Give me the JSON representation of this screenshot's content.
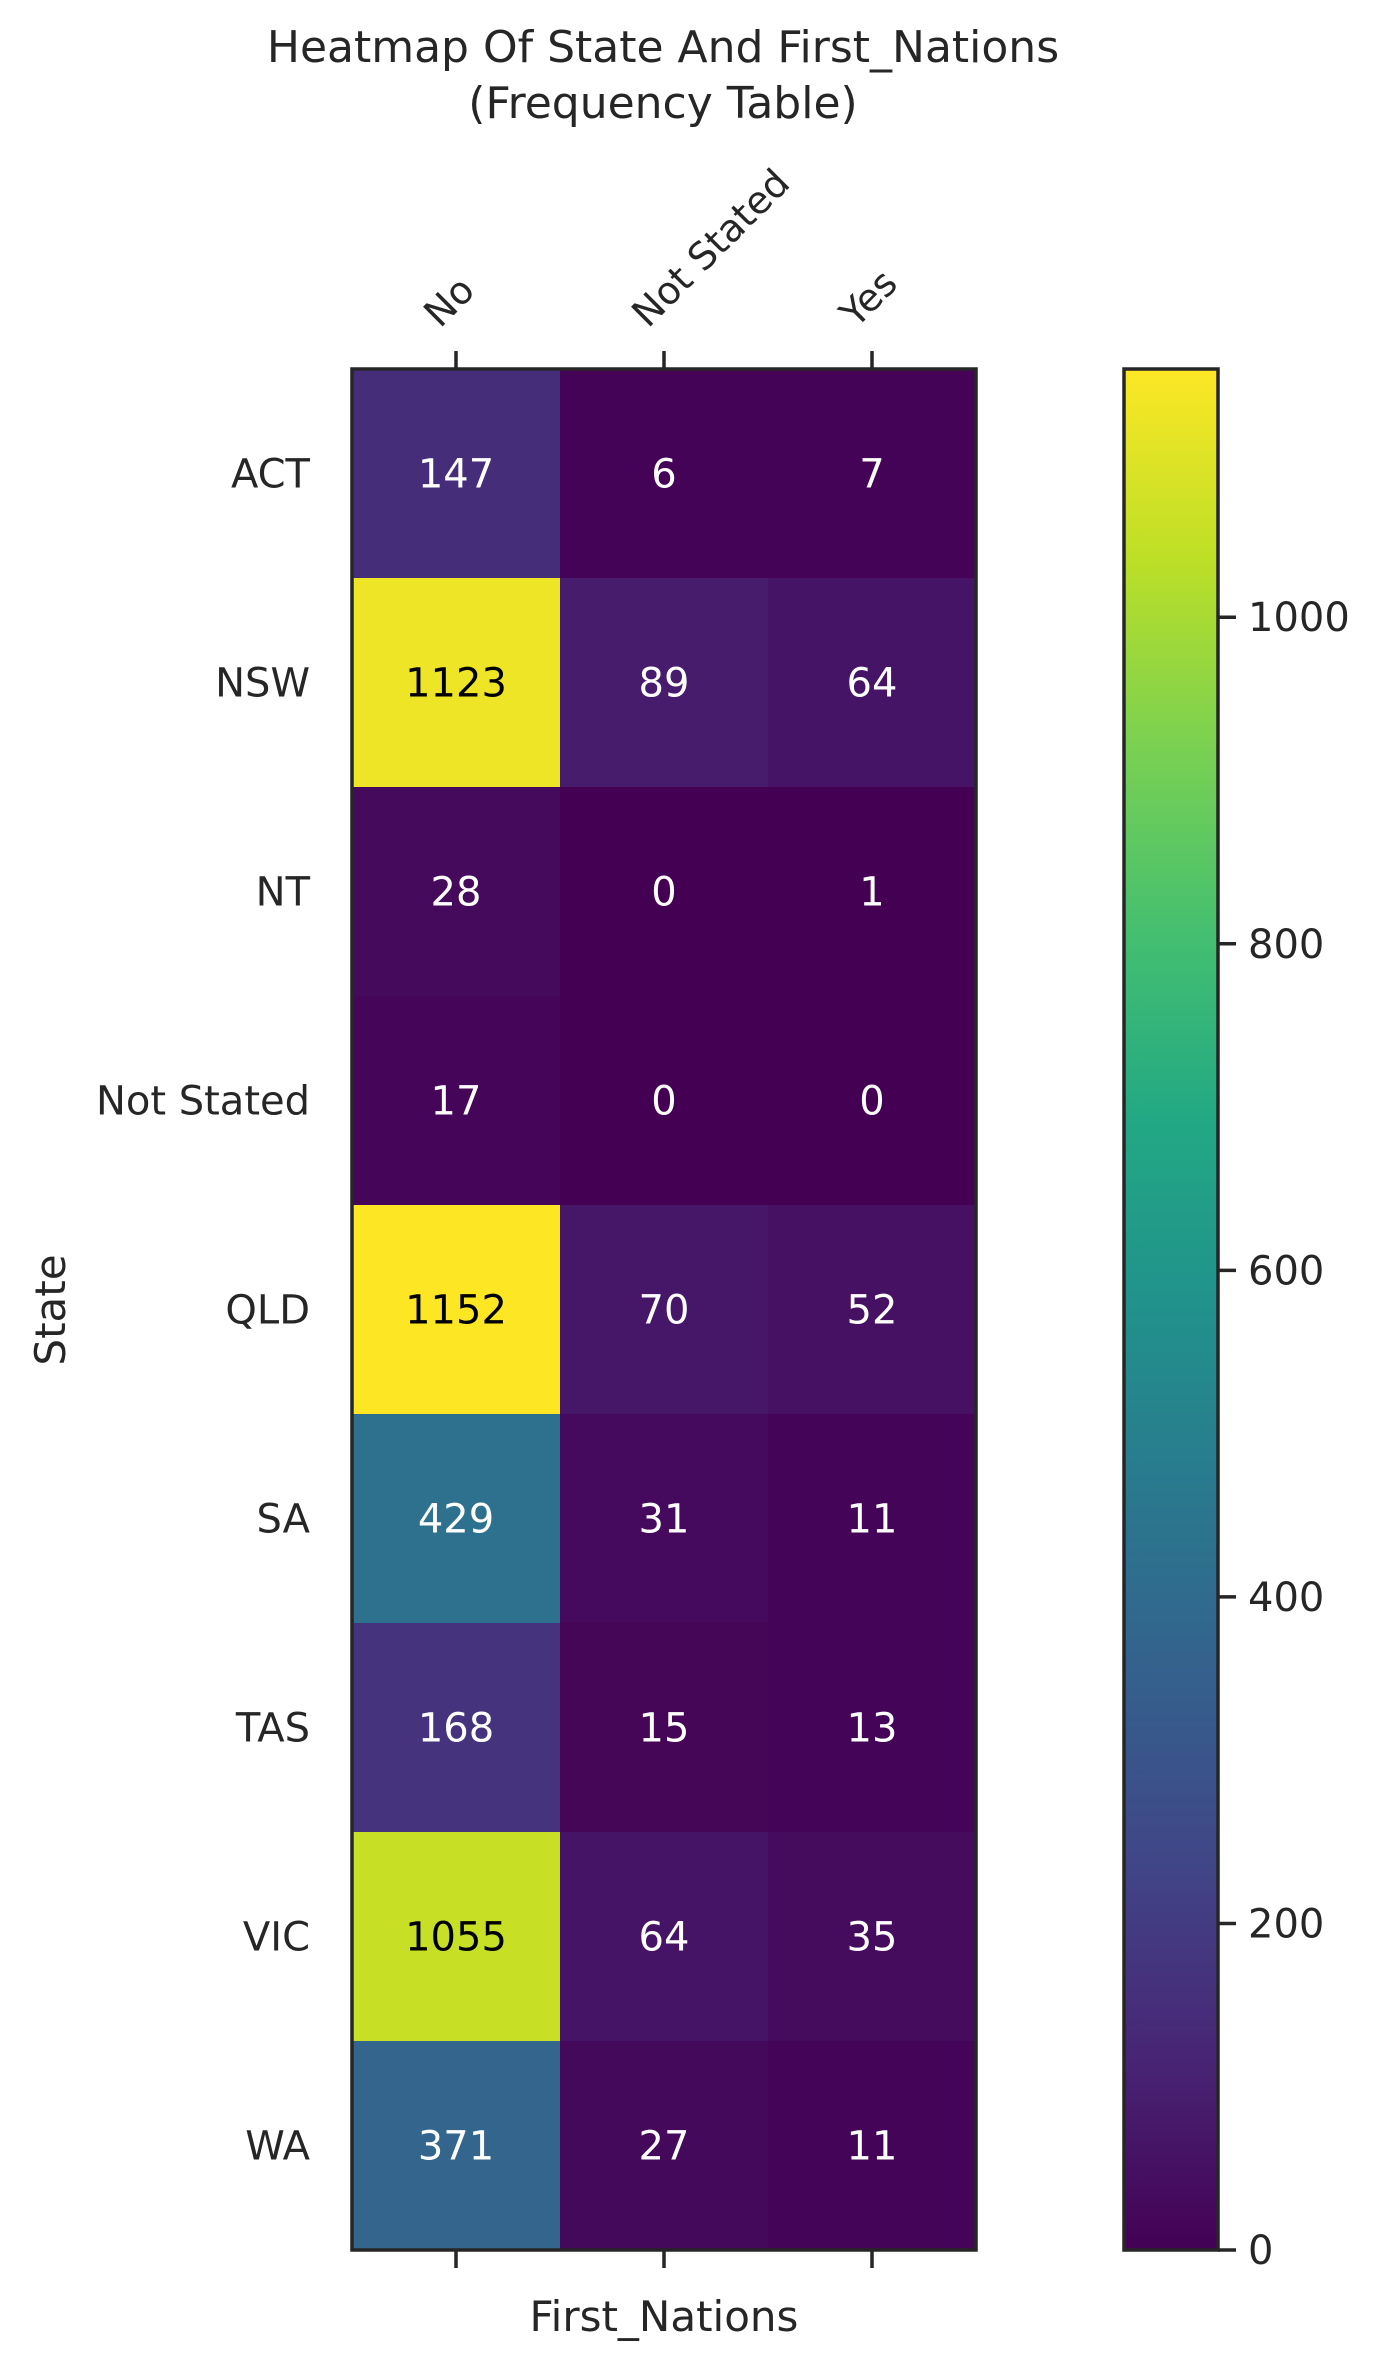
{
  "chart_data": {
    "type": "heatmap",
    "title": "Heatmap Of State And First_Nations",
    "subtitle": "(Frequency Table)",
    "xlabel": "First_Nations",
    "ylabel": "State",
    "x_categories": [
      "No",
      "Not Stated",
      "Yes"
    ],
    "y_categories": [
      "ACT",
      "NSW",
      "NT",
      "Not Stated",
      "QLD",
      "SA",
      "TAS",
      "VIC",
      "WA"
    ],
    "values": [
      [
        147,
        6,
        7
      ],
      [
        1123,
        89,
        64
      ],
      [
        28,
        0,
        1
      ],
      [
        17,
        0,
        0
      ],
      [
        1152,
        70,
        52
      ],
      [
        429,
        31,
        11
      ],
      [
        168,
        15,
        13
      ],
      [
        1055,
        64,
        35
      ],
      [
        371,
        27,
        11
      ]
    ],
    "colormap": "viridis",
    "vmin": 0,
    "vmax": 1152,
    "colorbar": {
      "ticks": [
        0,
        200,
        400,
        600,
        800,
        1000
      ],
      "tick_labels": [
        "0",
        "200",
        "400",
        "600",
        "800",
        "1000"
      ]
    },
    "annotation_colors": {
      "light": "#ffffff",
      "dark": "#000000"
    },
    "grid": false,
    "legend": "colorbar-right"
  }
}
